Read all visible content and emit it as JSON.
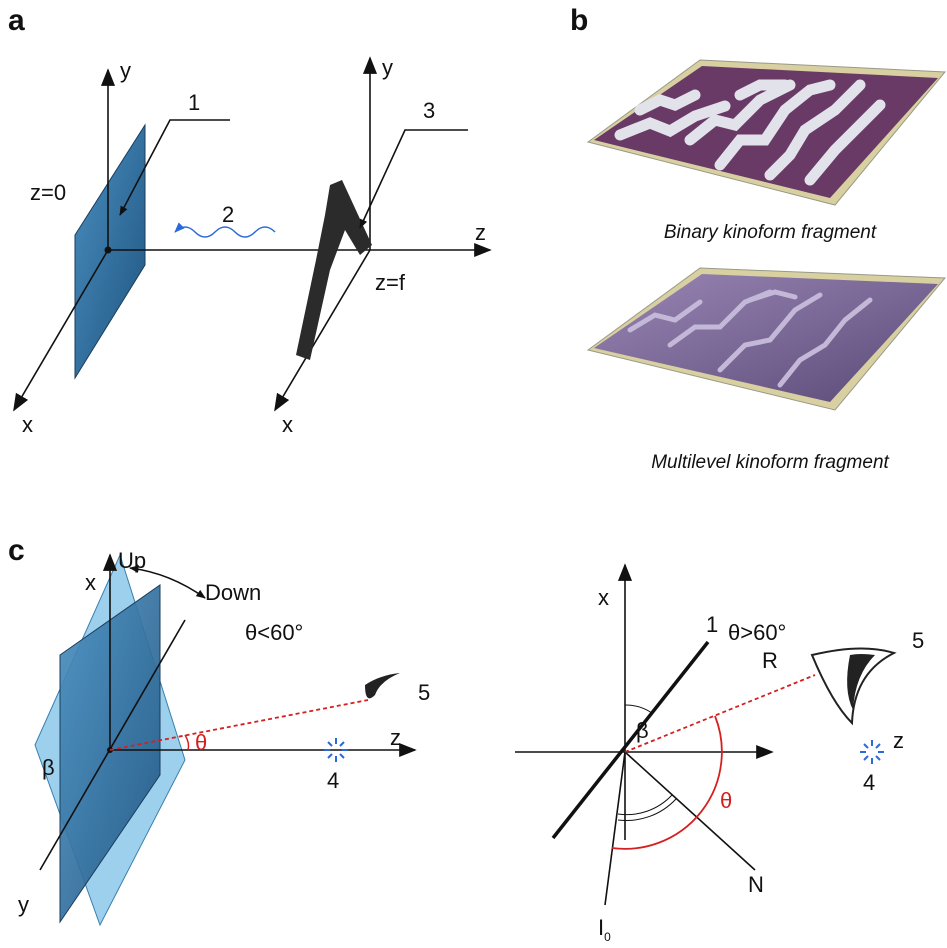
{
  "panel_a": {
    "label": "a",
    "left_axes": {
      "y": "y",
      "x": "x"
    },
    "right_axes": {
      "y": "y",
      "x": "x",
      "z": "z"
    },
    "callouts": [
      "1",
      "2",
      "3"
    ],
    "planes": [
      "z=0",
      "z=f"
    ]
  },
  "panel_b": {
    "label": "b",
    "captions": [
      "Binary kinoform fragment",
      "Multilevel kinoform fragment"
    ]
  },
  "panel_c": {
    "label": "c",
    "left": {
      "x": "x",
      "up": "Up",
      "down": "Down",
      "angle_condition": "θ<60°",
      "viewer": "5",
      "theta": "θ",
      "z": "z",
      "source": "4",
      "beta": "β",
      "y": "y"
    },
    "right": {
      "x": "x",
      "angle_condition": "θ>60°",
      "viewer": "5",
      "line": "1",
      "beta": "β",
      "ray": "R",
      "z": "z",
      "theta": "θ",
      "source": "4",
      "normal": "N",
      "incident": {
        "main": "I",
        "sub": "0"
      }
    }
  }
}
